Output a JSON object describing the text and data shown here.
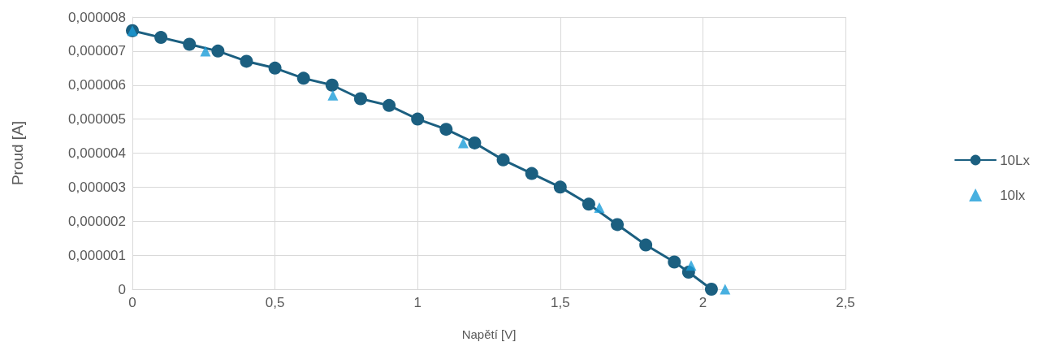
{
  "chart_data": {
    "type": "line",
    "xlabel": "Napětí [V]",
    "ylabel": "Proud [A]",
    "series": [
      {
        "name": "10Lx",
        "color": "#1b5f80",
        "marker": "circle",
        "line_style": "solid",
        "x": [
          0,
          0.1,
          0.2,
          0.3,
          0.4,
          0.5,
          0.6,
          0.7,
          0.8,
          0.9,
          1.0,
          1.1,
          1.2,
          1.3,
          1.4,
          1.5,
          1.6,
          1.7,
          1.8,
          1.9,
          1.95,
          2.03
        ],
        "values": [
          7.6e-06,
          7.4e-06,
          7.2e-06,
          7e-06,
          6.7e-06,
          6.5e-06,
          6.2e-06,
          6e-06,
          5.6e-06,
          5.4e-06,
          5e-06,
          4.7e-06,
          4.3e-06,
          3.8e-06,
          3.4e-06,
          3e-06,
          2.5e-06,
          1.9e-06,
          1.3e-06,
          8e-07,
          5e-07,
          0
        ]
      },
      {
        "name": "10lx",
        "type": "scatter",
        "color": "#1a9cd8",
        "marker": "triangle",
        "x": [
          0,
          0.256,
          0.703,
          1.16,
          1.637,
          1.959,
          2.078
        ],
        "values": [
          7.6e-06,
          7e-06,
          5.7e-06,
          4.3e-06,
          2.4e-06,
          7e-07,
          0
        ]
      }
    ],
    "xlim": [
      0,
      2.5
    ],
    "xticks": [
      0,
      {
        "value": 0.5,
        "label": "0,5"
      },
      1,
      {
        "value": 1.5,
        "label": "1,5"
      },
      2,
      {
        "value": 2.5,
        "label": "2,5"
      }
    ],
    "ylim": [
      0,
      8e-06
    ],
    "yticks": [
      0,
      {
        "value": 1e-06,
        "label": "0,000001"
      },
      {
        "value": 2e-06,
        "label": "0,000002"
      },
      {
        "value": 3e-06,
        "label": "0,000003"
      },
      {
        "value": 4e-06,
        "label": "0,000004"
      },
      {
        "value": 5e-06,
        "label": "0,000005"
      },
      {
        "value": 6e-06,
        "label": "0,000006"
      },
      {
        "value": 7e-06,
        "label": "0,000007"
      },
      {
        "value": 8e-06,
        "label": "0,000008"
      }
    ],
    "grid": true,
    "legend": "right"
  }
}
